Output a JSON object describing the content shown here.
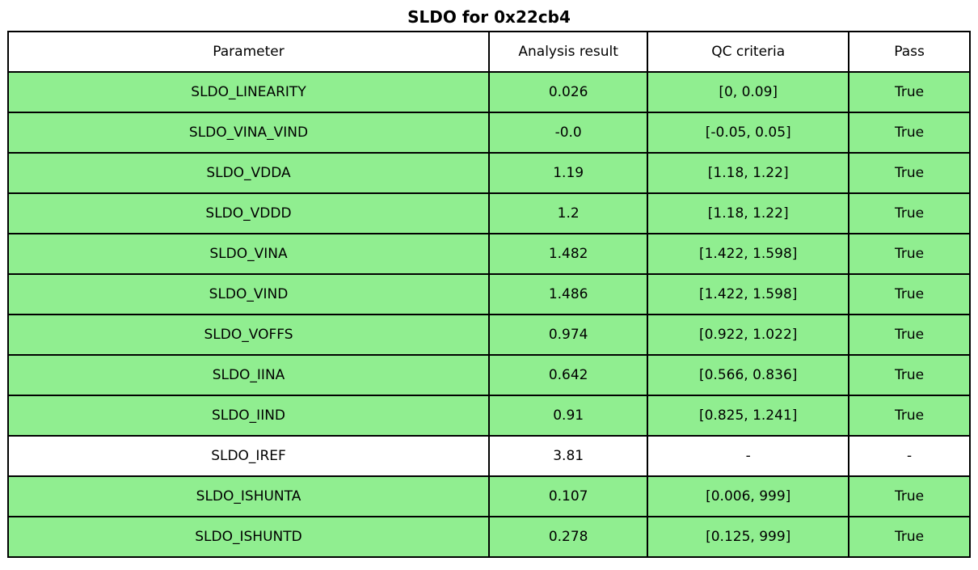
{
  "title": "SLDO for 0x22cb4",
  "colors": {
    "pass_row_bg": "#90EE90",
    "header_bg": "#FFFFFF",
    "border_color": "#000000",
    "text_color": "#000000"
  },
  "table": {
    "headers": [
      "Parameter",
      "Analysis result",
      "QC criteria",
      "Pass"
    ],
    "rows": [
      {
        "parameter": "SLDO_LINEARITY",
        "analysis_result": "0.026",
        "qc_criteria": "[0, 0.09]",
        "pass": "True",
        "state": "pass"
      },
      {
        "parameter": "SLDO_VINA_VIND",
        "analysis_result": "-0.0",
        "qc_criteria": "[-0.05, 0.05]",
        "pass": "True",
        "state": "pass"
      },
      {
        "parameter": "SLDO_VDDA",
        "analysis_result": "1.19",
        "qc_criteria": "[1.18, 1.22]",
        "pass": "True",
        "state": "pass"
      },
      {
        "parameter": "SLDO_VDDD",
        "analysis_result": "1.2",
        "qc_criteria": "[1.18, 1.22]",
        "pass": "True",
        "state": "pass"
      },
      {
        "parameter": "SLDO_VINA",
        "analysis_result": "1.482",
        "qc_criteria": "[1.422, 1.598]",
        "pass": "True",
        "state": "pass"
      },
      {
        "parameter": "SLDO_VIND",
        "analysis_result": "1.486",
        "qc_criteria": "[1.422, 1.598]",
        "pass": "True",
        "state": "pass"
      },
      {
        "parameter": "SLDO_VOFFS",
        "analysis_result": "0.974",
        "qc_criteria": "[0.922, 1.022]",
        "pass": "True",
        "state": "pass"
      },
      {
        "parameter": "SLDO_IINA",
        "analysis_result": "0.642",
        "qc_criteria": "[0.566, 0.836]",
        "pass": "True",
        "state": "pass"
      },
      {
        "parameter": "SLDO_IIND",
        "analysis_result": "0.91",
        "qc_criteria": "[0.825, 1.241]",
        "pass": "True",
        "state": "pass"
      },
      {
        "parameter": "SLDO_IREF",
        "analysis_result": "3.81",
        "qc_criteria": "-",
        "pass": "-",
        "state": "none"
      },
      {
        "parameter": "SLDO_ISHUNTA",
        "analysis_result": "0.107",
        "qc_criteria": "[0.006, 999]",
        "pass": "True",
        "state": "pass"
      },
      {
        "parameter": "SLDO_ISHUNTD",
        "analysis_result": "0.278",
        "qc_criteria": "[0.125, 999]",
        "pass": "True",
        "state": "pass"
      }
    ]
  },
  "chart_data": {
    "type": "table",
    "title": "SLDO for 0x22cb4",
    "columns": [
      "Parameter",
      "Analysis result",
      "QC criteria",
      "Pass"
    ],
    "rows": [
      [
        "SLDO_LINEARITY",
        "0.026",
        "[0, 0.09]",
        "True"
      ],
      [
        "SLDO_VINA_VIND",
        "-0.0",
        "[-0.05, 0.05]",
        "True"
      ],
      [
        "SLDO_VDDA",
        "1.19",
        "[1.18, 1.22]",
        "True"
      ],
      [
        "SLDO_VDDD",
        "1.2",
        "[1.18, 1.22]",
        "True"
      ],
      [
        "SLDO_VINA",
        "1.482",
        "[1.422, 1.598]",
        "True"
      ],
      [
        "SLDO_VIND",
        "1.486",
        "[1.422, 1.598]",
        "True"
      ],
      [
        "SLDO_VOFFS",
        "0.974",
        "[0.922, 1.022]",
        "True"
      ],
      [
        "SLDO_IINA",
        "0.642",
        "[0.566, 0.836]",
        "True"
      ],
      [
        "SLDO_IIND",
        "0.91",
        "[0.825, 1.241]",
        "True"
      ],
      [
        "SLDO_IREF",
        "3.81",
        "-",
        "-"
      ],
      [
        "SLDO_ISHUNTA",
        "0.107",
        "[0.006, 999]",
        "True"
      ],
      [
        "SLDO_ISHUNTD",
        "0.278",
        "[0.125, 999]",
        "True"
      ]
    ],
    "row_highlight": "rows with Pass=True have lightgreen (#90EE90) background; SLDO_IREF row is white",
    "legend_position": "none",
    "grid": "full cell borders, black"
  }
}
